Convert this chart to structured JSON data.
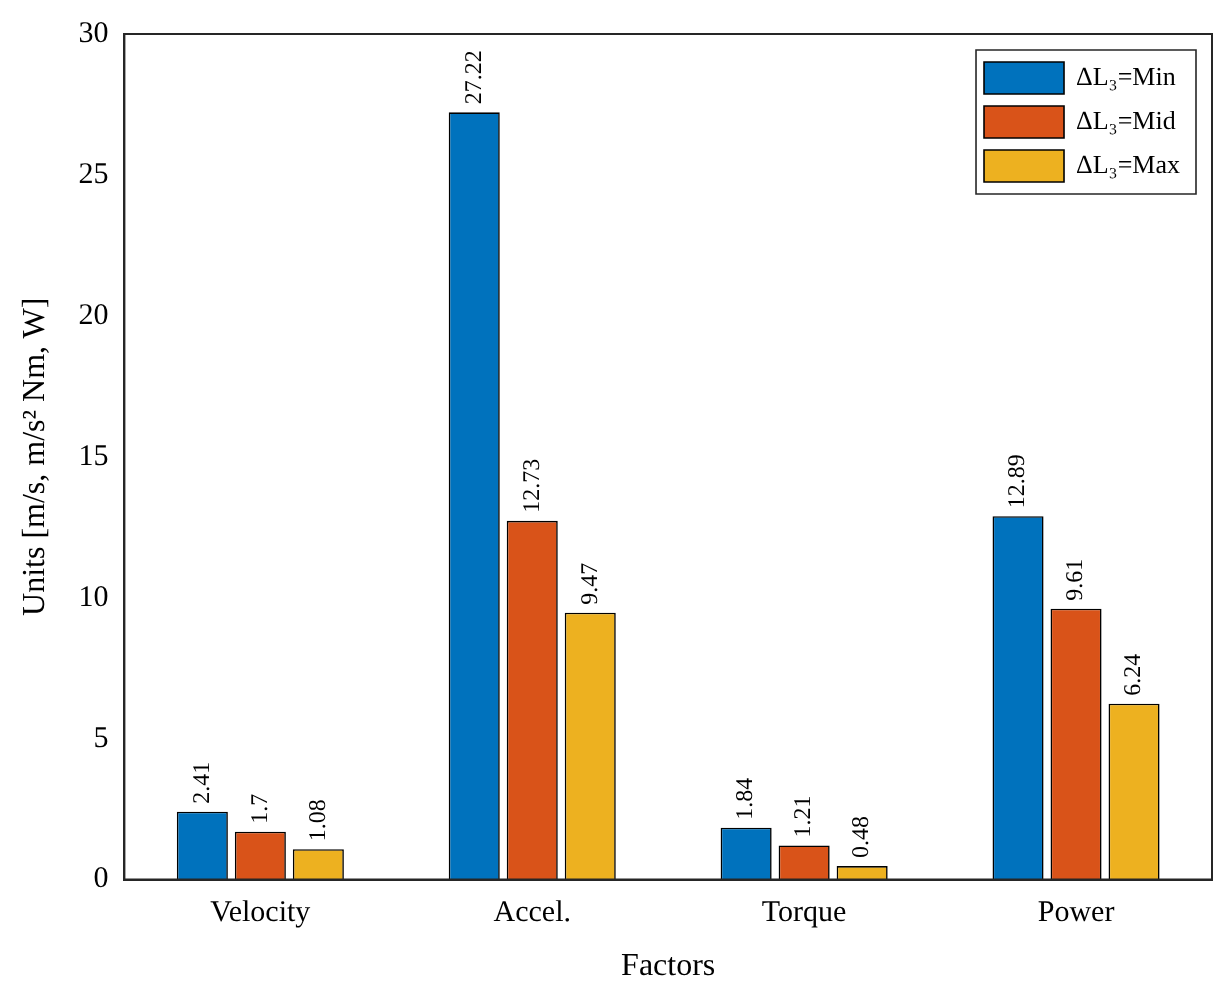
{
  "chart_data": {
    "type": "bar",
    "xlabel": "Factors",
    "ylabel": "Units [m/s, m/s² Nm, W]",
    "categories": [
      "Velocity",
      "Accel.",
      "Torque",
      "Power"
    ],
    "series": [
      {
        "name": "ΔL₃=Min",
        "color": "#0072bd",
        "values": [
          2.41,
          27.22,
          1.84,
          12.89
        ]
      },
      {
        "name": "ΔL₃=Mid",
        "color": "#d95319",
        "values": [
          1.7,
          12.73,
          1.21,
          9.61
        ]
      },
      {
        "name": "ΔL₃=Max",
        "color": "#edb120",
        "values": [
          1.08,
          9.47,
          0.48,
          6.24
        ]
      }
    ],
    "ylim": [
      0,
      30
    ],
    "yticks": [
      0,
      5,
      10,
      15,
      20,
      25,
      30
    ],
    "grid": false,
    "legend": "top right",
    "data_labels": true
  }
}
